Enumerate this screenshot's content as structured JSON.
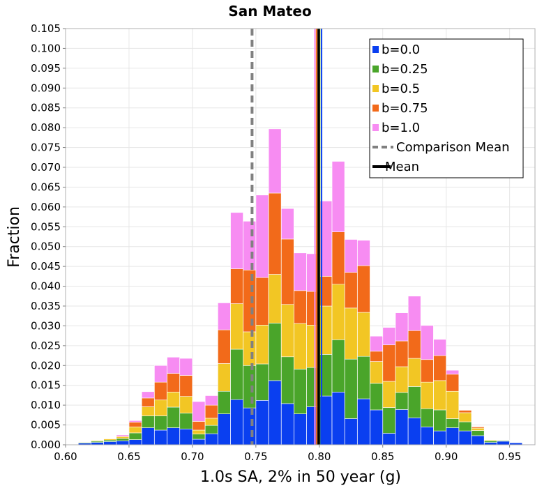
{
  "chart_data": {
    "type": "bar",
    "stacked": true,
    "title": "San Mateo",
    "xlabel": "1.0s SA, 2% in 50 year (g)",
    "ylabel": "Fraction",
    "xlim": [
      0.6,
      0.97
    ],
    "ylim": [
      0.0,
      0.105
    ],
    "xticks": [
      "0.60",
      "0.65",
      "0.70",
      "0.75",
      "0.80",
      "0.85",
      "0.90",
      "0.95"
    ],
    "yticks": [
      "0.000",
      "0.005",
      "0.010",
      "0.015",
      "0.020",
      "0.025",
      "0.030",
      "0.035",
      "0.040",
      "0.045",
      "0.050",
      "0.055",
      "0.060",
      "0.065",
      "0.070",
      "0.075",
      "0.080",
      "0.085",
      "0.090",
      "0.095",
      "0.100",
      "0.105"
    ],
    "grid": true,
    "legend_position": "top-right",
    "bin_width": 0.0099,
    "x": [
      0.615,
      0.625,
      0.635,
      0.645,
      0.655,
      0.665,
      0.675,
      0.685,
      0.695,
      0.705,
      0.715,
      0.725,
      0.735,
      0.745,
      0.755,
      0.765,
      0.775,
      0.785,
      0.795,
      0.805,
      0.815,
      0.825,
      0.835,
      0.845,
      0.855,
      0.865,
      0.875,
      0.885,
      0.895,
      0.905,
      0.915,
      0.925,
      0.935,
      0.945,
      0.955,
      0.965
    ],
    "series": [
      {
        "name": "b=0.0",
        "color": "#0a3ff0",
        "values": [
          0.0004,
          0.0006,
          0.0008,
          0.001,
          0.0013,
          0.0043,
          0.0037,
          0.0043,
          0.004,
          0.0014,
          0.0028,
          0.0078,
          0.0114,
          0.0093,
          0.0112,
          0.0162,
          0.0104,
          0.0078,
          0.0096,
          0.0123,
          0.0133,
          0.0066,
          0.0116,
          0.0088,
          0.0029,
          0.0089,
          0.0068,
          0.0045,
          0.0035,
          0.0043,
          0.0035,
          0.0023,
          0.0006,
          0.0009,
          0.0005,
          0.0001
        ]
      },
      {
        "name": "b=0.25",
        "color": "#4aa52a",
        "values": [
          0.0002,
          0.0003,
          0.0004,
          0.0006,
          0.0017,
          0.003,
          0.0036,
          0.0052,
          0.004,
          0.0013,
          0.0021,
          0.0057,
          0.0127,
          0.0107,
          0.0092,
          0.0145,
          0.0118,
          0.0113,
          0.0099,
          0.0105,
          0.0132,
          0.015,
          0.0107,
          0.0067,
          0.0065,
          0.0043,
          0.0079,
          0.0046,
          0.0053,
          0.0023,
          0.0023,
          0.0013,
          0.0004,
          0.0002,
          0.0001,
          0.0
        ]
      },
      {
        "name": "b=0.5",
        "color": "#f2c624",
        "values": [
          0.0001,
          0.0002,
          0.0003,
          0.0004,
          0.0015,
          0.0023,
          0.004,
          0.0038,
          0.0042,
          0.001,
          0.0018,
          0.007,
          0.0115,
          0.0085,
          0.0098,
          0.0123,
          0.0132,
          0.0115,
          0.0107,
          0.0122,
          0.014,
          0.0129,
          0.0111,
          0.0055,
          0.0066,
          0.0065,
          0.0071,
          0.0067,
          0.0074,
          0.0069,
          0.0023,
          0.0006,
          0.0002,
          0.0001,
          0.0,
          0.0
        ]
      },
      {
        "name": "b=0.75",
        "color": "#f26a1a",
        "values": [
          0.0001,
          0.0001,
          0.0001,
          0.0002,
          0.0012,
          0.0022,
          0.0045,
          0.0047,
          0.0053,
          0.0022,
          0.0033,
          0.0085,
          0.0088,
          0.0156,
          0.012,
          0.0205,
          0.0165,
          0.0083,
          0.0085,
          0.0075,
          0.0132,
          0.009,
          0.0118,
          0.0026,
          0.0092,
          0.0065,
          0.007,
          0.0057,
          0.0063,
          0.0043,
          0.0006,
          0.0003,
          0.0001,
          0.0,
          0.0,
          0.0
        ]
      },
      {
        "name": "b=1.0",
        "color": "#f78cf2",
        "values": [
          0.0,
          0.0,
          0.0001,
          0.0003,
          0.0004,
          0.0016,
          0.0042,
          0.0041,
          0.0043,
          0.005,
          0.0024,
          0.0068,
          0.0142,
          0.0123,
          0.0208,
          0.0162,
          0.0077,
          0.0095,
          0.0095,
          0.019,
          0.0178,
          0.0083,
          0.0064,
          0.0038,
          0.0044,
          0.0071,
          0.0087,
          0.0086,
          0.0041,
          0.001,
          0.0,
          0.0,
          0.0,
          0.0,
          0.0,
          0.0
        ]
      }
    ],
    "reference_lines": [
      {
        "name": "Comparison Mean",
        "x": 0.747,
        "color": "#808080",
        "style": "dashed"
      },
      {
        "name": "Mean",
        "x": 0.7995,
        "color": "#000000",
        "style": "solid"
      }
    ],
    "mean_lines": [
      {
        "x": 0.7965,
        "color": "#f78cf2"
      },
      {
        "x": 0.7978,
        "color": "#f26a1a"
      },
      {
        "x": 0.799,
        "color": "#f2c624"
      },
      {
        "x": 0.8003,
        "color": "#4aa52a"
      },
      {
        "x": 0.8018,
        "color": "#0a3ff0"
      }
    ]
  }
}
